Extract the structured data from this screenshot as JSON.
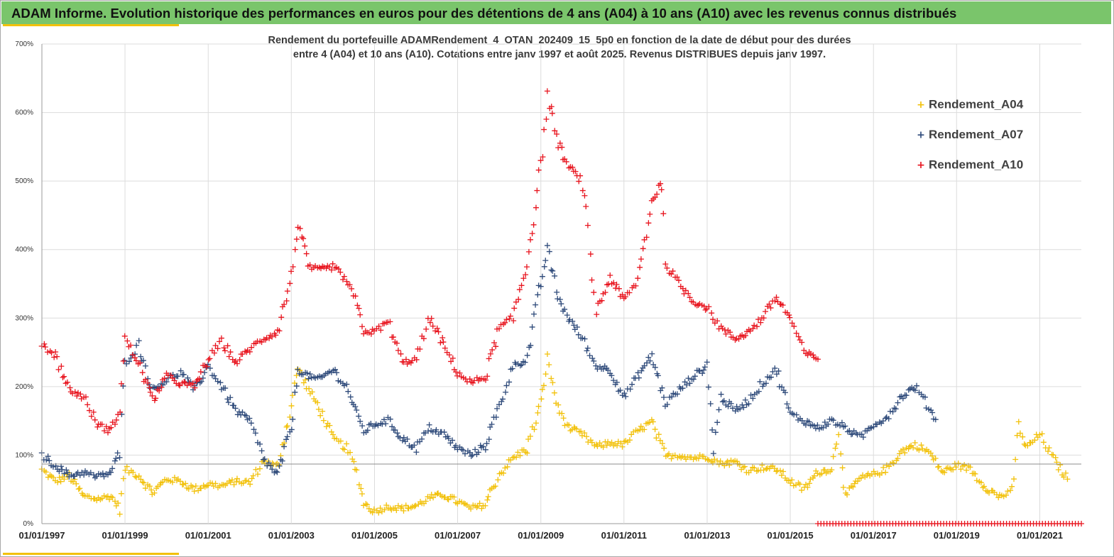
{
  "header": {
    "title": "ADAM Informe. Evolution historique des performances en euros pour des détentions de 4 ans (A04) à 10 ans (A10) avec les revenus connus distribués"
  },
  "colors": {
    "header_bg": "#7ac56b",
    "accent": "#f2c10a",
    "Rendement_A04": "#f2c10a",
    "Rendement_A07": "#2e4a7a",
    "Rendement_A10": "#e8141e"
  },
  "chart_data": {
    "type": "scatter",
    "title_lines": [
      "Rendement du portefeuille ADAMRendement_4_OTAN_202409_15_5p0  en fonction de la date de début pour des durées",
      "entre 4 (A04) et 10 ans (A10). Cotations entre janv 1997 et août 2025. Revenus DISTRIBUES depuis janv 1997."
    ],
    "marker": "+",
    "grid": true,
    "legend_position": "top-right",
    "x_axis": {
      "type": "date",
      "range": [
        "1997-01-01",
        "2022-01-01"
      ],
      "tick_labels": [
        "01/01/1997",
        "01/01/1999",
        "01/01/2001",
        "01/01/2003",
        "01/01/2005",
        "01/01/2007",
        "01/01/2009",
        "01/01/2011",
        "01/01/2013",
        "01/01/2015",
        "01/01/2017",
        "01/01/2019",
        "01/01/2021"
      ]
    },
    "y_axis": {
      "range": [
        0,
        700
      ],
      "tick_labels": [
        "0%",
        "100%",
        "200%",
        "300%",
        "400%",
        "500%",
        "600%",
        "700%"
      ]
    },
    "reference_line_y": 87,
    "series": [
      {
        "name": "Rendement_A04",
        "points": [
          [
            "1997-01-01",
            78
          ],
          [
            "1997-05-01",
            62
          ],
          [
            "1997-09-01",
            70
          ],
          [
            "1998-01-01",
            40
          ],
          [
            "1998-05-01",
            36
          ],
          [
            "1998-09-01",
            40
          ],
          [
            "1998-11-15",
            22
          ],
          [
            "1999-01-01",
            80
          ],
          [
            "1999-05-01",
            70
          ],
          [
            "1999-09-01",
            45
          ],
          [
            "2000-01-01",
            65
          ],
          [
            "2000-05-01",
            62
          ],
          [
            "2000-09-01",
            50
          ],
          [
            "2001-01-01",
            58
          ],
          [
            "2001-05-01",
            55
          ],
          [
            "2001-09-01",
            62
          ],
          [
            "2002-01-01",
            60
          ],
          [
            "2002-05-01",
            92
          ],
          [
            "2002-09-01",
            82
          ],
          [
            "2003-01-01",
            172
          ],
          [
            "2003-03-01",
            228
          ],
          [
            "2003-06-01",
            195
          ],
          [
            "2003-09-01",
            170
          ],
          [
            "2004-01-01",
            125
          ],
          [
            "2004-05-01",
            110
          ],
          [
            "2004-08-01",
            75
          ],
          [
            "2004-10-01",
            30
          ],
          [
            "2005-01-01",
            18
          ],
          [
            "2005-05-01",
            25
          ],
          [
            "2005-09-01",
            22
          ],
          [
            "2006-01-01",
            26
          ],
          [
            "2006-05-01",
            38
          ],
          [
            "2006-09-01",
            42
          ],
          [
            "2007-01-01",
            32
          ],
          [
            "2007-05-01",
            22
          ],
          [
            "2007-09-01",
            28
          ],
          [
            "2008-01-01",
            72
          ],
          [
            "2008-05-01",
            95
          ],
          [
            "2008-09-01",
            110
          ],
          [
            "2009-01-01",
            175
          ],
          [
            "2009-03-01",
            240
          ],
          [
            "2009-06-01",
            168
          ],
          [
            "2009-09-01",
            140
          ],
          [
            "2010-01-01",
            130
          ],
          [
            "2010-05-01",
            112
          ],
          [
            "2010-09-01",
            118
          ],
          [
            "2011-01-01",
            115
          ],
          [
            "2011-05-01",
            135
          ],
          [
            "2011-09-01",
            148
          ],
          [
            "2012-01-01",
            98
          ],
          [
            "2012-05-01",
            100
          ],
          [
            "2012-09-01",
            96
          ],
          [
            "2013-01-01",
            98
          ],
          [
            "2013-05-01",
            88
          ],
          [
            "2013-09-01",
            90
          ],
          [
            "2014-01-01",
            78
          ],
          [
            "2014-05-01",
            82
          ],
          [
            "2014-09-01",
            80
          ],
          [
            "2015-01-01",
            62
          ],
          [
            "2015-05-01",
            50
          ],
          [
            "2015-09-01",
            75
          ],
          [
            "2016-01-01",
            80
          ],
          [
            "2016-03-01",
            135
          ],
          [
            "2016-05-01",
            40
          ],
          [
            "2016-09-01",
            65
          ],
          [
            "2017-01-01",
            72
          ],
          [
            "2017-05-01",
            80
          ],
          [
            "2017-09-01",
            105
          ],
          [
            "2018-01-01",
            115
          ],
          [
            "2018-05-01",
            105
          ],
          [
            "2018-09-01",
            75
          ],
          [
            "2019-01-01",
            85
          ],
          [
            "2019-05-01",
            80
          ],
          [
            "2019-09-01",
            55
          ],
          [
            "2020-01-01",
            40
          ],
          [
            "2020-05-01",
            45
          ],
          [
            "2020-07-01",
            145
          ],
          [
            "2020-09-01",
            110
          ],
          [
            "2021-01-01",
            130
          ],
          [
            "2021-05-01",
            95
          ],
          [
            "2021-09-01",
            65
          ]
        ]
      },
      {
        "name": "Rendement_A07",
        "points": [
          [
            "1997-01-01",
            100
          ],
          [
            "1997-05-01",
            85
          ],
          [
            "1997-09-01",
            70
          ],
          [
            "1998-01-01",
            75
          ],
          [
            "1998-05-01",
            68
          ],
          [
            "1998-09-01",
            75
          ],
          [
            "1998-11-15",
            105
          ],
          [
            "1999-01-01",
            235
          ],
          [
            "1999-05-01",
            260
          ],
          [
            "1999-09-01",
            195
          ],
          [
            "2000-01-01",
            210
          ],
          [
            "2000-05-01",
            220
          ],
          [
            "2000-09-01",
            195
          ],
          [
            "2001-01-01",
            230
          ],
          [
            "2001-05-01",
            200
          ],
          [
            "2001-09-01",
            165
          ],
          [
            "2002-01-01",
            150
          ],
          [
            "2002-05-01",
            95
          ],
          [
            "2002-09-01",
            70
          ],
          [
            "2003-01-01",
            140
          ],
          [
            "2003-03-01",
            225
          ],
          [
            "2003-06-01",
            215
          ],
          [
            "2003-09-01",
            210
          ],
          [
            "2004-01-01",
            225
          ],
          [
            "2004-05-01",
            200
          ],
          [
            "2004-08-01",
            160
          ],
          [
            "2004-10-01",
            135
          ],
          [
            "2005-01-01",
            145
          ],
          [
            "2005-05-01",
            150
          ],
          [
            "2005-09-01",
            125
          ],
          [
            "2006-01-01",
            110
          ],
          [
            "2006-05-01",
            140
          ],
          [
            "2006-09-01",
            130
          ],
          [
            "2007-01-01",
            110
          ],
          [
            "2007-05-01",
            100
          ],
          [
            "2007-09-01",
            115
          ],
          [
            "2008-01-01",
            170
          ],
          [
            "2008-05-01",
            230
          ],
          [
            "2008-09-01",
            240
          ],
          [
            "2009-01-01",
            350
          ],
          [
            "2009-03-01",
            400
          ],
          [
            "2009-06-01",
            330
          ],
          [
            "2009-09-01",
            300
          ],
          [
            "2010-01-01",
            270
          ],
          [
            "2010-05-01",
            230
          ],
          [
            "2010-09-01",
            225
          ],
          [
            "2011-01-01",
            185
          ],
          [
            "2011-05-01",
            215
          ],
          [
            "2011-09-01",
            245
          ],
          [
            "2012-01-01",
            175
          ],
          [
            "2012-05-01",
            195
          ],
          [
            "2012-09-01",
            215
          ],
          [
            "2013-01-01",
            230
          ],
          [
            "2013-03-01",
            110
          ],
          [
            "2013-05-01",
            185
          ],
          [
            "2013-09-01",
            165
          ],
          [
            "2014-01-01",
            180
          ],
          [
            "2014-05-01",
            205
          ],
          [
            "2014-09-01",
            225
          ],
          [
            "2015-01-01",
            160
          ],
          [
            "2015-05-01",
            150
          ],
          [
            "2015-09-01",
            140
          ],
          [
            "2016-01-01",
            150
          ],
          [
            "2016-05-01",
            140
          ],
          [
            "2016-09-01",
            125
          ],
          [
            "2017-01-01",
            145
          ],
          [
            "2017-05-01",
            155
          ],
          [
            "2017-09-01",
            185
          ],
          [
            "2018-01-01",
            200
          ],
          [
            "2018-05-01",
            170
          ],
          [
            "2018-07-01",
            152
          ]
        ]
      },
      {
        "name": "Rendement_A10",
        "points": [
          [
            "1997-01-01",
            262
          ],
          [
            "1997-05-01",
            245
          ],
          [
            "1997-09-01",
            195
          ],
          [
            "1998-01-01",
            185
          ],
          [
            "1998-05-01",
            145
          ],
          [
            "1998-09-01",
            135
          ],
          [
            "1998-11-15",
            170
          ],
          [
            "1999-01-01",
            270
          ],
          [
            "1999-05-01",
            235
          ],
          [
            "1999-09-01",
            180
          ],
          [
            "2000-01-01",
            215
          ],
          [
            "2000-05-01",
            205
          ],
          [
            "2000-09-01",
            200
          ],
          [
            "2001-01-01",
            240
          ],
          [
            "2001-05-01",
            265
          ],
          [
            "2001-09-01",
            235
          ],
          [
            "2002-01-01",
            255
          ],
          [
            "2002-05-01",
            270
          ],
          [
            "2002-09-01",
            280
          ],
          [
            "2003-01-01",
            360
          ],
          [
            "2003-03-01",
            440
          ],
          [
            "2003-06-01",
            375
          ],
          [
            "2003-09-01",
            370
          ],
          [
            "2004-01-01",
            375
          ],
          [
            "2004-05-01",
            355
          ],
          [
            "2004-08-01",
            320
          ],
          [
            "2004-10-01",
            280
          ],
          [
            "2005-01-01",
            280
          ],
          [
            "2005-05-01",
            295
          ],
          [
            "2005-09-01",
            235
          ],
          [
            "2006-01-01",
            240
          ],
          [
            "2006-05-01",
            300
          ],
          [
            "2006-09-01",
            260
          ],
          [
            "2007-01-01",
            220
          ],
          [
            "2007-05-01",
            205
          ],
          [
            "2007-09-01",
            215
          ],
          [
            "2008-01-01",
            285
          ],
          [
            "2008-05-01",
            300
          ],
          [
            "2008-09-01",
            380
          ],
          [
            "2009-01-01",
            520
          ],
          [
            "2009-03-01",
            625
          ],
          [
            "2009-06-01",
            555
          ],
          [
            "2009-09-01",
            520
          ],
          [
            "2010-01-01",
            500
          ],
          [
            "2010-05-01",
            310
          ],
          [
            "2010-09-01",
            360
          ],
          [
            "2011-01-01",
            325
          ],
          [
            "2011-05-01",
            355
          ],
          [
            "2011-09-01",
            470
          ],
          [
            "2011-12-01",
            500
          ],
          [
            "2012-01-01",
            380
          ],
          [
            "2012-05-01",
            350
          ],
          [
            "2012-09-01",
            325
          ],
          [
            "2013-01-01",
            315
          ],
          [
            "2013-05-01",
            285
          ],
          [
            "2013-09-01",
            270
          ],
          [
            "2014-01-01",
            280
          ],
          [
            "2014-05-01",
            300
          ],
          [
            "2014-09-01",
            330
          ],
          [
            "2015-01-01",
            300
          ],
          [
            "2015-05-01",
            250
          ],
          [
            "2015-09-01",
            240
          ]
        ]
      },
      {
        "name": "Rendement_A10",
        "points": [
          [
            "2015-09-01",
            0
          ],
          [
            "2022-01-01",
            0
          ]
        ]
      }
    ]
  }
}
